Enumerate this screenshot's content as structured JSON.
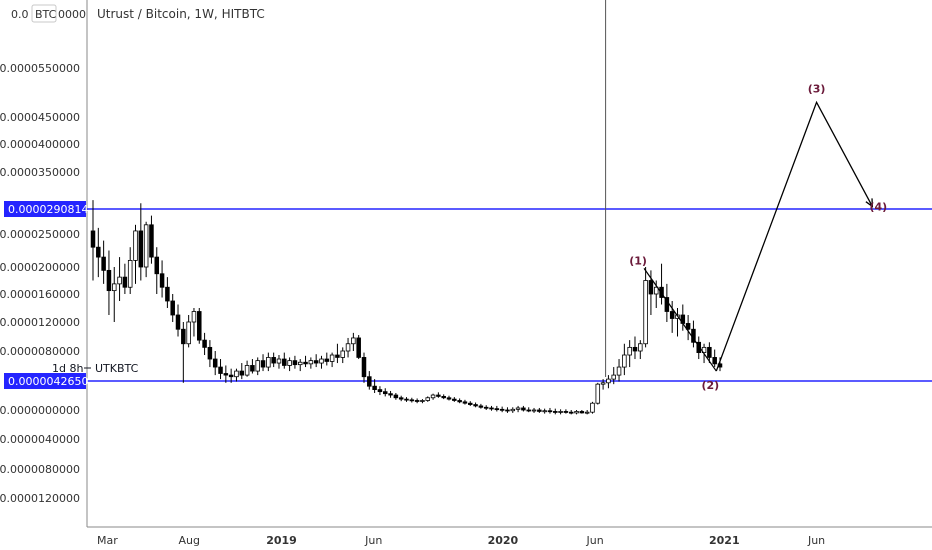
{
  "chart_data": {
    "type": "candlestick",
    "title": "Utrust / Bitcoin, 1W, HITBTC",
    "currency_badge": "BTC",
    "symbol_label": "UTKBTC",
    "countdown": "1d 8h",
    "y_top_partial_label": "0.0",
    "y_top_partial_label_tail": "0000",
    "y_ticks": [
      {
        "label": "0.0000550000",
        "value": 5.5e-05
      },
      {
        "label": "0.0000450000",
        "value": 4.5e-05
      },
      {
        "label": "0.0000400000",
        "value": 4e-05
      },
      {
        "label": "0.0000350000",
        "value": 3.5e-05
      },
      {
        "label": "0.0000250000",
        "value": 2.5e-05
      },
      {
        "label": "0.0000200000",
        "value": 2e-05
      },
      {
        "label": "0.0000160000",
        "value": 1.6e-05
      },
      {
        "label": "0.0000120000",
        "value": 1.2e-05
      },
      {
        "label": "0.0000080000",
        "value": 8e-06
      },
      {
        "label": "0.0000000000",
        "value": 0
      },
      {
        "label": "-0.0000040000",
        "value": -4e-06
      },
      {
        "label": "-0.0000080000",
        "value": -8e-06
      },
      {
        "label": "-0.0000120000",
        "value": -1.2e-05
      }
    ],
    "x_ticks": [
      {
        "label": "Mar",
        "date": "2018-03",
        "bold": false
      },
      {
        "label": "Aug",
        "date": "2018-08",
        "bold": false
      },
      {
        "label": "2019",
        "date": "2019-01",
        "bold": true
      },
      {
        "label": "Jun",
        "date": "2019-06",
        "bold": false
      },
      {
        "label": "2020",
        "date": "2020-01",
        "bold": true
      },
      {
        "label": "Jun",
        "date": "2020-06",
        "bold": false
      },
      {
        "label": "2021",
        "date": "2021-01",
        "bold": true
      },
      {
        "label": "Jun",
        "date": "2021-06",
        "bold": false
      }
    ],
    "horizontal_levels": [
      {
        "label": "0.0000290814",
        "value": 2.90814e-05,
        "color": "#2424ff"
      },
      {
        "label": "0.0000042650",
        "value": 4.265e-06,
        "color": "#2424ff"
      }
    ],
    "vertical_marker_date": "2020-07",
    "candles": [
      [
        2.55e-05,
        3.05e-05,
        1.8e-05,
        2.3e-05
      ],
      [
        2.3e-05,
        2.6e-05,
        1.85e-05,
        2.15e-05
      ],
      [
        2.15e-05,
        2.4e-05,
        1.75e-05,
        1.95e-05
      ],
      [
        1.95e-05,
        2.25e-05,
        1.3e-05,
        1.65e-05
      ],
      [
        1.65e-05,
        2e-05,
        1.2e-05,
        1.75e-05
      ],
      [
        1.75e-05,
        2.15e-05,
        1.5e-05,
        1.85e-05
      ],
      [
        1.85e-05,
        2.05e-05,
        1.6e-05,
        1.7e-05
      ],
      [
        1.7e-05,
        2.3e-05,
        1.6e-05,
        2.1e-05
      ],
      [
        2.1e-05,
        2.65e-05,
        1.75e-05,
        2.55e-05
      ],
      [
        2.55e-05,
        3e-05,
        1.8e-05,
        2e-05
      ],
      [
        2e-05,
        2.7e-05,
        1.85e-05,
        2.65e-05
      ],
      [
        2.65e-05,
        2.8e-05,
        2.05e-05,
        2.15e-05
      ],
      [
        2.15e-05,
        2.3e-05,
        1.6e-05,
        1.9e-05
      ],
      [
        1.9e-05,
        2.1e-05,
        1.55e-05,
        1.7e-05
      ],
      [
        1.7e-05,
        1.85e-05,
        1.4e-05,
        1.5e-05
      ],
      [
        1.5e-05,
        1.6e-05,
        1.2e-05,
        1.3e-05
      ],
      [
        1.3e-05,
        1.45e-05,
        1e-05,
        1.1e-05
      ],
      [
        1.1e-05,
        1.2e-05,
        4e-06,
        9e-06
      ],
      [
        9e-06,
        1.3e-05,
        8.5e-06,
        1.2e-05
      ],
      [
        1.2e-05,
        1.4e-05,
        1e-05,
        1.35e-05
      ],
      [
        1.35e-05,
        1.4e-05,
        9e-06,
        9.5e-06
      ],
      [
        9.5e-06,
        1.05e-05,
        7.5e-06,
        8.5e-06
      ],
      [
        8.5e-06,
        9.5e-06,
        6e-06,
        7e-06
      ],
      [
        7e-06,
        8e-06,
        5e-06,
        6e-06
      ],
      [
        6e-06,
        7e-06,
        4.5e-06,
        5.2e-06
      ],
      [
        5.2e-06,
        6.2e-06,
        4e-06,
        5e-06
      ],
      [
        5e-06,
        5.8e-06,
        4e-06,
        4.8e-06
      ],
      [
        4.8e-06,
        5.8e-06,
        4.2e-06,
        5.5e-06
      ],
      [
        5.5e-06,
        6.5e-06,
        4.5e-06,
        5e-06
      ],
      [
        5e-06,
        6.8e-06,
        4.8e-06,
        6.2e-06
      ],
      [
        6.2e-06,
        7e-06,
        5.2e-06,
        5.5e-06
      ],
      [
        5.5e-06,
        7.2e-06,
        5e-06,
        6.8e-06
      ],
      [
        6.8e-06,
        7.6e-06,
        5.5e-06,
        6e-06
      ],
      [
        6e-06,
        7.8e-06,
        5.5e-06,
        7.2e-06
      ],
      [
        7.2e-06,
        7.8e-06,
        6e-06,
        6.5e-06
      ],
      [
        6.5e-06,
        7.5e-06,
        5.8e-06,
        7e-06
      ],
      [
        7e-06,
        7.8e-06,
        5.8e-06,
        6.2e-06
      ],
      [
        6.2e-06,
        7.2e-06,
        5.5e-06,
        6.8e-06
      ],
      [
        6.8e-06,
        7.4e-06,
        5.8e-06,
        6.3e-06
      ],
      [
        6.3e-06,
        7e-06,
        5.5e-06,
        6.6e-06
      ],
      [
        6.6e-06,
        7.4e-06,
        6e-06,
        6.4e-06
      ],
      [
        6.4e-06,
        7.2e-06,
        5.8e-06,
        6.8e-06
      ],
      [
        6.8e-06,
        7.6e-06,
        6e-06,
        6.5e-06
      ],
      [
        6.5e-06,
        7.4e-06,
        5.8e-06,
        7e-06
      ],
      [
        7e-06,
        7.8e-06,
        6.2e-06,
        6.7e-06
      ],
      [
        6.7e-06,
        7.8e-06,
        6e-06,
        7.5e-06
      ],
      [
        7.5e-06,
        9e-06,
        6.5e-06,
        7.2e-06
      ],
      [
        7.2e-06,
        8.5e-06,
        6.5e-06,
        8e-06
      ],
      [
        8e-06,
        9.8e-06,
        7.2e-06,
        9e-06
      ],
      [
        9e-06,
        1.05e-05,
        8e-06,
        9.8e-06
      ],
      [
        9.8e-06,
        1.02e-05,
        7e-06,
        7.2e-06
      ],
      [
        7.2e-06,
        7.8e-06,
        4e-06,
        4.8e-06
      ],
      [
        4.8e-06,
        5.5e-06,
        3e-06,
        3.5e-06
      ],
      [
        3.5e-06,
        4.5e-06,
        2.5e-06,
        3e-06
      ],
      [
        3e-06,
        3.5e-06,
        2.2e-06,
        2.7e-06
      ],
      [
        2.7e-06,
        3.2e-06,
        2e-06,
        2.4e-06
      ],
      [
        2.4e-06,
        2.8e-06,
        1.8e-06,
        2.2e-06
      ],
      [
        2.2e-06,
        2.5e-06,
        1.5e-06,
        1.8e-06
      ],
      [
        1.8e-06,
        2.1e-06,
        1.3e-06,
        1.6e-06
      ],
      [
        1.6e-06,
        1.9e-06,
        1.2e-06,
        1.5e-06
      ],
      [
        1.5e-06,
        1.8e-06,
        1.1e-06,
        1.4e-06
      ],
      [
        1.4e-06,
        1.7e-06,
        1e-06,
        1.3e-06
      ],
      [
        1.3e-06,
        1.6e-06,
        1e-06,
        1.4e-06
      ],
      [
        1.4e-06,
        2e-06,
        1.2e-06,
        1.8e-06
      ],
      [
        1.8e-06,
        2.4e-06,
        1.5e-06,
        2.2e-06
      ],
      [
        2.2e-06,
        2.6e-06,
        1.8e-06,
        2e-06
      ],
      [
        2e-06,
        2.3e-06,
        1.6e-06,
        1.8e-06
      ],
      [
        1.8e-06,
        2.1e-06,
        1.4e-06,
        1.6e-06
      ],
      [
        1.6e-06,
        1.9e-06,
        1.2e-06,
        1.4e-06
      ],
      [
        1.4e-06,
        1.7e-06,
        1e-06,
        1.2e-06
      ],
      [
        1.2e-06,
        1.5e-06,
        8e-07,
        1e-06
      ],
      [
        1e-06,
        1.3e-06,
        6e-07,
        8e-07
      ],
      [
        8e-07,
        1.1e-06,
        4e-07,
        6e-07
      ],
      [
        6e-07,
        9e-07,
        2e-07,
        4e-07
      ],
      [
        4e-07,
        7e-07,
        0.0,
        3e-07
      ],
      [
        3e-07,
        6e-07,
        -1e-07,
        2e-07
      ],
      [
        2e-07,
        6e-07,
        -2e-07,
        1e-07
      ],
      [
        1e-07,
        5e-07,
        -3e-07,
        0.0
      ],
      [
        0.0,
        4e-07,
        -4e-07,
        -1e-07
      ],
      [
        -1e-07,
        4e-07,
        -4e-07,
        1e-07
      ],
      [
        1e-07,
        6e-07,
        -3e-07,
        3e-07
      ],
      [
        3e-07,
        6e-07,
        -2e-07,
        0.0
      ],
      [
        0.0,
        4e-07,
        -3e-07,
        -1e-07
      ],
      [
        -1e-07,
        3e-07,
        -4e-07,
        0.0
      ],
      [
        0.0,
        3e-07,
        -4e-07,
        -2e-07
      ],
      [
        -2e-07,
        2e-07,
        -5e-07,
        -1e-07
      ],
      [
        -1e-07,
        3e-07,
        -5e-07,
        -2e-07
      ],
      [
        -2e-07,
        2e-07,
        -6e-07,
        -3e-07
      ],
      [
        -3e-07,
        1e-07,
        -6e-07,
        -2e-07
      ],
      [
        -2e-07,
        1e-07,
        -5e-07,
        -3e-07
      ],
      [
        -3e-07,
        0.0,
        -6e-07,
        -4e-07
      ],
      [
        -4e-07,
        0.0,
        -6e-07,
        -2e-07
      ],
      [
        -2e-07,
        0.0,
        -5e-07,
        -4e-07
      ],
      [
        -4e-07,
        0.0,
        -6e-07,
        -3e-07
      ],
      [
        -3e-07,
        1.2e-06,
        -5e-07,
        1e-06
      ],
      [
        1e-06,
        4e-06,
        8e-07,
        3.8e-06
      ],
      [
        3.8e-06,
        4.5e-06,
        3e-06,
        4e-06
      ],
      [
        4e-06,
        5e-06,
        3.2e-06,
        4.5e-06
      ],
      [
        4.5e-06,
        6e-06,
        3.8e-06,
        5e-06
      ],
      [
        5e-06,
        7e-06,
        4.2e-06,
        6e-06
      ],
      [
        6e-06,
        9e-06,
        5e-06,
        7.5e-06
      ],
      [
        7.5e-06,
        9.5e-06,
        6e-06,
        8.5e-06
      ],
      [
        8.5e-06,
        1e-05,
        7e-06,
        8e-06
      ],
      [
        8e-06,
        9.5e-06,
        7e-06,
        9e-06
      ],
      [
        9e-06,
        2e-05,
        8.5e-06,
        1.8e-05
      ],
      [
        1.8e-05,
        1.95e-05,
        1.3e-05,
        1.6e-05
      ],
      [
        1.6e-05,
        1.8e-05,
        1.4e-05,
        1.7e-05
      ],
      [
        1.7e-05,
        2.05e-05,
        1.45e-05,
        1.55e-05
      ],
      [
        1.55e-05,
        1.75e-05,
        1.2e-05,
        1.35e-05
      ],
      [
        1.35e-05,
        1.5e-05,
        1.05e-05,
        1.25e-05
      ],
      [
        1.25e-05,
        1.4e-05,
        1e-05,
        1.3e-05
      ],
      [
        1.3e-05,
        1.45e-05,
        1.08e-05,
        1.18e-05
      ],
      [
        1.18e-05,
        1.3e-05,
        9.5e-06,
        1.1e-05
      ],
      [
        1.1e-05,
        1.22e-05,
        8.5e-06,
        9.2e-06
      ],
      [
        9.2e-06,
        1e-05,
        7e-06,
        7.8e-06
      ],
      [
        7.8e-06,
        9e-06,
        6.5e-06,
        8.5e-06
      ],
      [
        8.5e-06,
        9.2e-06,
        6.5e-06,
        7.2e-06
      ],
      [
        7.2e-06,
        8.2e-06,
        6e-06,
        6.4e-06
      ],
      [
        6.4e-06,
        7.2e-06,
        5.5e-06,
        6e-06
      ]
    ],
    "projection": {
      "color": "#000000",
      "points": [
        {
          "label": "(1)",
          "date": "2020-08",
          "value": 1.98e-05
        },
        {
          "label": "(2)",
          "date": "2021-01",
          "value": 5.5e-06
        },
        {
          "label": "(3)",
          "date": "2021-06",
          "value": 4.8e-05
        },
        {
          "label": "(4)",
          "date": "2021-10",
          "value": 2.95e-05
        }
      ]
    },
    "trendline": {
      "from": {
        "date": "2020-08",
        "value": 1.98e-05
      },
      "to": {
        "date": "2021-01",
        "value": 5.5e-06
      }
    },
    "colors": {
      "up": "#ffffff",
      "down": "#000000",
      "wick": "#000000",
      "level": "#2424ff",
      "wave_label": "#6b1a3a"
    }
  }
}
